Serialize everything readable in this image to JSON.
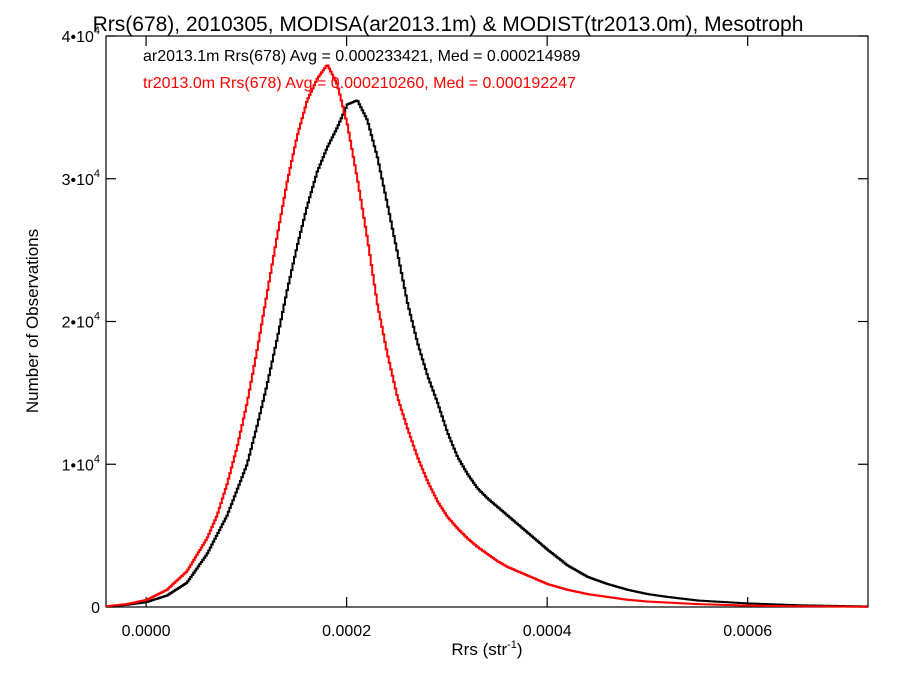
{
  "chart_data": {
    "type": "line",
    "title": "Rrs(678), 2010305, MODISA(ar2013.1m) & MODIST(tr2013.0m), Mesotroph",
    "xlabel": "Rrs (str",
    "xlabel_sup": "-1",
    "xlabel_close": ")",
    "ylabel": "Number of Observations",
    "xlim": [
      -4e-05,
      0.00072
    ],
    "ylim": [
      0,
      40000
    ],
    "x_ticks": [
      {
        "value": 0.0,
        "label": "0.0000"
      },
      {
        "value": 0.0002,
        "label": "0.0002"
      },
      {
        "value": 0.0004,
        "label": "0.0004"
      },
      {
        "value": 0.0006,
        "label": "0.0006"
      }
    ],
    "y_ticks": [
      {
        "value": 0,
        "base": "0",
        "exp": ""
      },
      {
        "value": 10000,
        "base": "1•10",
        "exp": "4"
      },
      {
        "value": 20000,
        "base": "2•10",
        "exp": "4"
      },
      {
        "value": 30000,
        "base": "3•10",
        "exp": "4"
      },
      {
        "value": 40000,
        "base": "4•10",
        "exp": "4"
      }
    ],
    "legend": [
      {
        "text": "ar2013.1m Rrs(678) Avg = 0.000233421, Med = 0.000214989",
        "color": "#000000"
      },
      {
        "text": "tr2013.0m Rrs(678) Avg = 0.000210260, Med = 0.000192247",
        "color": "#ff0000"
      }
    ],
    "legend_position": "top-left",
    "grid": false,
    "series": [
      {
        "color": "#000000",
        "x": [
          -4e-05,
          -2e-05,
          0.0,
          2e-05,
          4e-05,
          6e-05,
          8e-05,
          0.0001,
          0.00011,
          0.00012,
          0.00013,
          0.00014,
          0.00015,
          0.00016,
          0.00017,
          0.00018,
          0.00019,
          0.0002,
          0.00021,
          0.00022,
          0.00023,
          0.00024,
          0.00025,
          0.00026,
          0.00027,
          0.00028,
          0.00029,
          0.0003,
          0.00031,
          0.00032,
          0.00033,
          0.00034,
          0.00035,
          0.00036,
          0.00037,
          0.00038,
          0.0004,
          0.00042,
          0.00044,
          0.00046,
          0.00048,
          0.0005,
          0.00052,
          0.00055,
          0.0006,
          0.00065,
          0.0007,
          0.00072
        ],
        "y": [
          50,
          150,
          350,
          800,
          1700,
          3700,
          6400,
          10000,
          12700,
          15600,
          18800,
          22200,
          25300,
          28100,
          30500,
          32200,
          33600,
          35200,
          35500,
          34100,
          31500,
          28200,
          24800,
          21300,
          18500,
          16200,
          14300,
          12200,
          10500,
          9300,
          8300,
          7600,
          7000,
          6400,
          5800,
          5200,
          4000,
          2900,
          2100,
          1600,
          1200,
          900,
          700,
          450,
          250,
          120,
          60,
          40
        ]
      },
      {
        "color": "#ff0000",
        "x": [
          -4e-05,
          -2e-05,
          0.0,
          2e-05,
          4e-05,
          6e-05,
          7e-05,
          8e-05,
          9e-05,
          0.0001,
          0.00011,
          0.00012,
          0.00013,
          0.00014,
          0.00015,
          0.00016,
          0.00017,
          0.00018,
          0.00019,
          0.0002,
          0.00021,
          0.00022,
          0.00023,
          0.00024,
          0.00025,
          0.00026,
          0.00027,
          0.00028,
          0.00029,
          0.0003,
          0.00031,
          0.00032,
          0.00033,
          0.00034,
          0.00035,
          0.00036,
          0.00038,
          0.0004,
          0.00042,
          0.00044,
          0.00046,
          0.00048,
          0.0005,
          0.00055,
          0.0006,
          0.00065,
          0.0007,
          0.00072
        ],
        "y": [
          60,
          200,
          500,
          1200,
          2500,
          4800,
          6400,
          8600,
          11200,
          14300,
          18000,
          22000,
          26000,
          29800,
          33000,
          35500,
          37000,
          38000,
          36600,
          33800,
          30000,
          25800,
          21200,
          17700,
          14700,
          12500,
          10500,
          8800,
          7400,
          6300,
          5500,
          4800,
          4200,
          3700,
          3200,
          2800,
          2200,
          1600,
          1200,
          900,
          700,
          500,
          380,
          200,
          100,
          50,
          30,
          20
        ]
      }
    ]
  }
}
